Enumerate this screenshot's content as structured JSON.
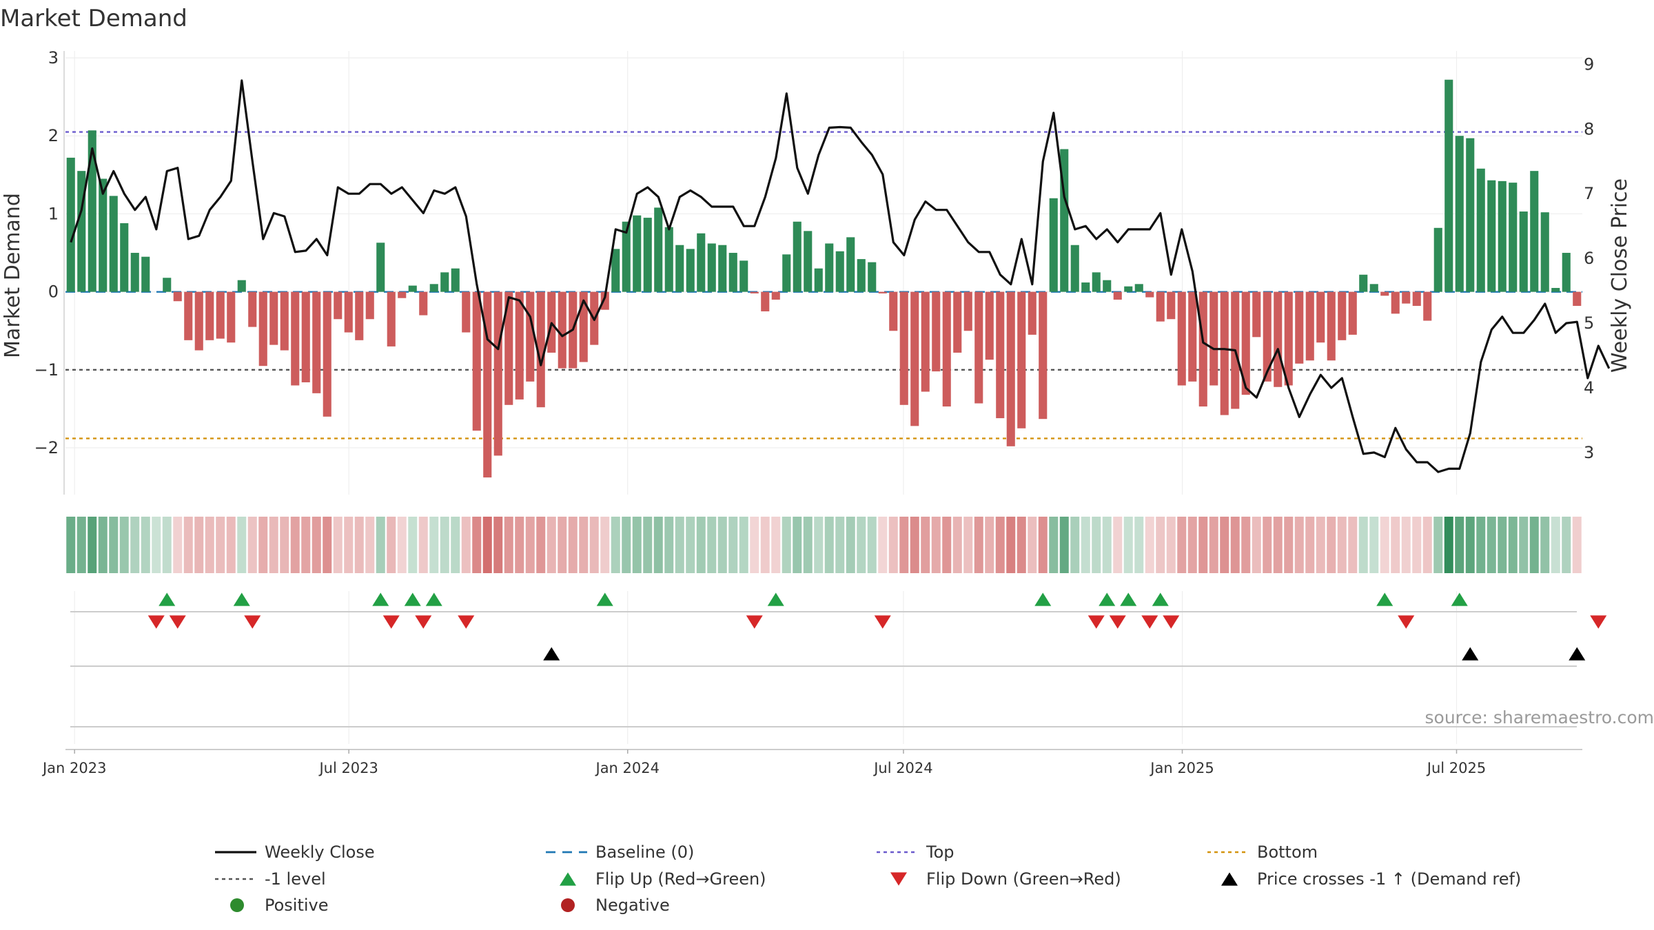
{
  "chart_data": {
    "type": "bar",
    "title": "Market Demand",
    "ylabel": "Market Demand",
    "ylabel_right": "Weekly Close Price",
    "ylim": [
      -2.6,
      3.0
    ],
    "ylim_right": [
      2.35,
      9.1
    ],
    "yticks": [
      3,
      2,
      1,
      0,
      -1,
      -2
    ],
    "ytick_labels": [
      "3",
      "2",
      "1",
      "0",
      "−1",
      "−2"
    ],
    "yticks_right": [
      9,
      8,
      7,
      6,
      5,
      4,
      3
    ],
    "ytick_labels_right": [
      "9",
      "8",
      "7",
      "6",
      "5",
      "4",
      "3"
    ],
    "x_start": "2022-12-26",
    "x_end": "2025-09-22",
    "x_ticks": [
      {
        "date": "2023-01-01",
        "label": "Jan 2023"
      },
      {
        "date": "2023-07-01",
        "label": "Jul 2023"
      },
      {
        "date": "2024-01-01",
        "label": "Jan 2024"
      },
      {
        "date": "2024-07-01",
        "label": "Jul 2024"
      },
      {
        "date": "2025-01-01",
        "label": "Jan 2025"
      },
      {
        "date": "2025-07-01",
        "label": "Jul 2025"
      }
    ],
    "levels": {
      "top": 2.05,
      "minus_one": -1.0,
      "bottom": -1.88,
      "baseline": 0
    },
    "demand": [
      1.72,
      1.55,
      2.07,
      1.45,
      1.23,
      0.88,
      0.5,
      0.45,
      0.0,
      0.18,
      -0.12,
      -0.62,
      -0.75,
      -0.62,
      -0.6,
      -0.65,
      0.15,
      -0.45,
      -0.95,
      -0.68,
      -0.75,
      -1.2,
      -1.16,
      -1.3,
      -1.6,
      -0.35,
      -0.52,
      -0.62,
      -0.35,
      0.63,
      -0.7,
      -0.08,
      0.08,
      -0.3,
      0.1,
      0.25,
      0.3,
      -0.52,
      -1.78,
      -2.38,
      -2.1,
      -1.45,
      -1.38,
      -1.15,
      -1.48,
      -0.78,
      -0.98,
      -0.98,
      -0.9,
      -0.68,
      -0.23,
      0.55,
      0.9,
      0.98,
      0.95,
      1.08,
      0.83,
      0.6,
      0.55,
      0.75,
      0.62,
      0.6,
      0.5,
      0.4,
      -0.02,
      -0.25,
      -0.1,
      0.48,
      0.9,
      0.78,
      0.3,
      0.62,
      0.52,
      0.7,
      0.42,
      0.38,
      -0.02,
      -0.5,
      -1.45,
      -1.72,
      -1.28,
      -1.02,
      -1.47,
      -0.78,
      -0.5,
      -1.43,
      -0.87,
      -1.62,
      -1.98,
      -1.75,
      -0.55,
      -1.63,
      1.2,
      1.83,
      0.6,
      0.12,
      0.25,
      0.15,
      -0.1,
      0.07,
      0.1,
      -0.07,
      -0.38,
      -0.35,
      -1.2,
      -1.15,
      -1.47,
      -1.2,
      -1.58,
      -1.5,
      -1.32,
      -0.58,
      -1.15,
      -1.22,
      -1.2,
      -0.92,
      -0.88,
      -0.65,
      -0.88,
      -0.62,
      -0.55,
      0.22,
      0.1,
      -0.05,
      -0.28,
      -0.15,
      -0.18,
      -0.37,
      0.82,
      2.72,
      2.0,
      1.97,
      1.58,
      1.43,
      1.42,
      1.4,
      1.03,
      1.55,
      1.02,
      0.05,
      0.5,
      -0.18
    ],
    "close": [
      6.25,
      6.75,
      7.7,
      7.0,
      7.35,
      7.0,
      6.75,
      6.95,
      6.45,
      7.35,
      7.4,
      6.3,
      6.35,
      6.75,
      6.95,
      7.2,
      8.75,
      7.5,
      6.3,
      6.7,
      6.65,
      6.1,
      6.12,
      6.3,
      6.05,
      7.1,
      7.0,
      7.0,
      7.15,
      7.15,
      7.0,
      7.1,
      6.9,
      6.7,
      7.05,
      7.0,
      7.1,
      6.65,
      5.6,
      4.75,
      4.6,
      5.4,
      5.35,
      5.1,
      4.35,
      5.0,
      4.8,
      4.9,
      5.35,
      5.05,
      5.4,
      6.45,
      6.4,
      7.0,
      7.1,
      6.95,
      6.45,
      6.95,
      7.05,
      6.95,
      6.8,
      6.8,
      6.8,
      6.5,
      6.5,
      6.95,
      7.55,
      8.55,
      7.4,
      7.0,
      7.6,
      8.02,
      8.03,
      8.02,
      7.8,
      7.6,
      7.3,
      6.25,
      6.05,
      6.6,
      6.88,
      6.75,
      6.75,
      6.5,
      6.25,
      6.1,
      6.1,
      5.75,
      5.6,
      6.3,
      5.6,
      7.5,
      8.25,
      6.95,
      6.45,
      6.5,
      6.3,
      6.45,
      6.25,
      6.45,
      6.45,
      6.45,
      6.7,
      5.75,
      6.45,
      5.8,
      4.7,
      4.6,
      4.6,
      4.58,
      4.0,
      3.85,
      4.25,
      4.6,
      4.0,
      3.55,
      3.9,
      4.2,
      4.0,
      4.15,
      3.55,
      2.98,
      3.0,
      2.93,
      3.38,
      3.05,
      2.85,
      2.85,
      2.7,
      2.75,
      2.75,
      3.3,
      4.4,
      4.9,
      5.1,
      4.85,
      4.85,
      5.05,
      5.3,
      4.85,
      5.0,
      5.02,
      4.15,
      4.65,
      4.3
    ],
    "flip_up_x": [
      9,
      16,
      29,
      32,
      34,
      50,
      66,
      91,
      97,
      99,
      102,
      123,
      130
    ],
    "flip_down_x": [
      8,
      10,
      17,
      30,
      33,
      37,
      64,
      76,
      96,
      98,
      101,
      103,
      125,
      143
    ],
    "price_cross_x": [
      45,
      131,
      141
    ],
    "legend": [
      {
        "key": "weekly_close",
        "label": "Weekly Close"
      },
      {
        "key": "baseline",
        "label": "Baseline (0)"
      },
      {
        "key": "top",
        "label": "Top"
      },
      {
        "key": "bottom",
        "label": "Bottom"
      },
      {
        "key": "minus_one",
        "label": "-1 level"
      },
      {
        "key": "flip_up",
        "label": "Flip Up (Red→Green)"
      },
      {
        "key": "flip_down",
        "label": "Flip Down (Green→Red)"
      },
      {
        "key": "price_cross",
        "label": "Price crosses -1 ↑ (Demand ref)"
      },
      {
        "key": "positive",
        "label": "Positive"
      },
      {
        "key": "negative",
        "label": "Negative"
      }
    ],
    "source": "source: sharemaestro.com"
  },
  "colors": {
    "positive_bar": "#2e8b57",
    "negative_bar": "#cd5c5c",
    "line": "#111111",
    "baseline": "#1f77b4",
    "top": "#6a5acd",
    "minus_one": "#555555",
    "bottom": "#d4940f",
    "flip_up": "#22a045",
    "flip_down": "#d62728",
    "price_cross": "#000000",
    "positive_dot": "#2e8b2e",
    "negative_dot": "#b22222",
    "grid": "#eeeeee"
  }
}
